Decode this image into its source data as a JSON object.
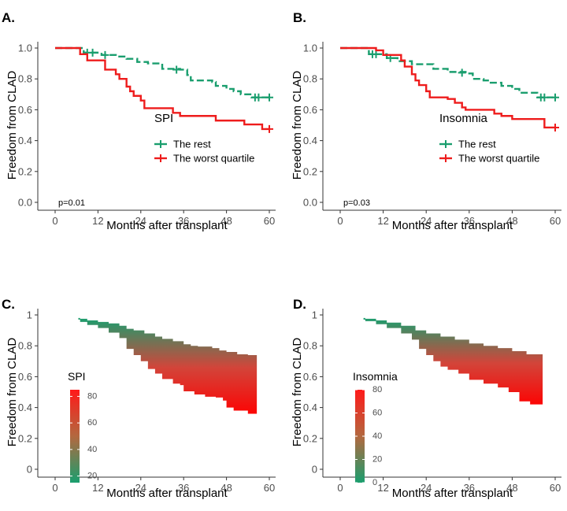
{
  "colors": {
    "rest": "#1a9e6e",
    "worst": "#ee1c1c",
    "axis": "#333333",
    "tick_label": "#4d4d4d"
  },
  "chart_data": [
    {
      "panel": "A.",
      "type": "line",
      "subtype": "kaplan-meier",
      "xlabel": "Months after transplant",
      "ylabel": "Freedom from CLAD",
      "xlim": [
        0,
        60
      ],
      "ylim": [
        0,
        1
      ],
      "xticks": [
        "0",
        "12",
        "24",
        "36",
        "48",
        "60"
      ],
      "yticks": [
        "0.0",
        "0.2",
        "0.4",
        "0.6",
        "0.8",
        "1.0"
      ],
      "legend_title": "SPI",
      "annotation": "p=0.01",
      "series": [
        {
          "name": "The rest",
          "color_key": "rest",
          "dashed": true,
          "steps": [
            [
              0,
              1.0
            ],
            [
              8,
              0.97
            ],
            [
              13,
              0.955
            ],
            [
              17,
              0.945
            ],
            [
              20,
              0.93
            ],
            [
              23,
              0.91
            ],
            [
              26,
              0.9
            ],
            [
              30,
              0.865
            ],
            [
              35,
              0.86
            ],
            [
              37,
              0.825
            ],
            [
              38,
              0.79
            ],
            [
              44,
              0.78
            ],
            [
              45,
              0.755
            ],
            [
              48,
              0.735
            ],
            [
              50,
              0.72
            ],
            [
              52,
              0.7
            ],
            [
              55,
              0.68
            ],
            [
              60,
              0.68
            ]
          ],
          "censor": [
            [
              9,
              0.97
            ],
            [
              10.5,
              0.97
            ],
            [
              14,
              0.955
            ],
            [
              34,
              0.86
            ],
            [
              56,
              0.68
            ],
            [
              57,
              0.68
            ],
            [
              60,
              0.68
            ]
          ]
        },
        {
          "name": "The worst quartile",
          "color_key": "worst",
          "dashed": false,
          "steps": [
            [
              0,
              1.0
            ],
            [
              7,
              0.96
            ],
            [
              9,
              0.92
            ],
            [
              14,
              0.86
            ],
            [
              17,
              0.83
            ],
            [
              18,
              0.8
            ],
            [
              20,
              0.75
            ],
            [
              21,
              0.72
            ],
            [
              22,
              0.69
            ],
            [
              24,
              0.66
            ],
            [
              25,
              0.61
            ],
            [
              30,
              0.61
            ],
            [
              33,
              0.58
            ],
            [
              35,
              0.56
            ],
            [
              45,
              0.53
            ],
            [
              50,
              0.53
            ],
            [
              53,
              0.505
            ],
            [
              58,
              0.475
            ],
            [
              60,
              0.475
            ]
          ],
          "censor": [
            [
              60,
              0.475
            ]
          ]
        }
      ]
    },
    {
      "panel": "B.",
      "type": "line",
      "subtype": "kaplan-meier",
      "xlabel": "Months after transplant",
      "ylabel": "Freedom from CLAD",
      "xlim": [
        0,
        60
      ],
      "ylim": [
        0,
        1
      ],
      "xticks": [
        "0",
        "12",
        "24",
        "36",
        "48",
        "60"
      ],
      "yticks": [
        "0.0",
        "0.2",
        "0.4",
        "0.6",
        "0.8",
        "1.0"
      ],
      "legend_title": "Insomnia",
      "annotation": "p=0.03",
      "series": [
        {
          "name": "The rest",
          "color_key": "rest",
          "dashed": true,
          "steps": [
            [
              0,
              1.0
            ],
            [
              8,
              0.96
            ],
            [
              13,
              0.935
            ],
            [
              16,
              0.915
            ],
            [
              20,
              0.895
            ],
            [
              26,
              0.865
            ],
            [
              30,
              0.845
            ],
            [
              35,
              0.835
            ],
            [
              37,
              0.8
            ],
            [
              40,
              0.79
            ],
            [
              42,
              0.775
            ],
            [
              45,
              0.755
            ],
            [
              48,
              0.735
            ],
            [
              50,
              0.71
            ],
            [
              55,
              0.68
            ],
            [
              60,
              0.68
            ]
          ],
          "censor": [
            [
              9,
              0.96
            ],
            [
              10,
              0.96
            ],
            [
              14,
              0.935
            ],
            [
              34,
              0.84
            ],
            [
              56,
              0.68
            ],
            [
              57,
              0.68
            ],
            [
              60,
              0.68
            ]
          ]
        },
        {
          "name": "The worst quartile",
          "color_key": "worst",
          "dashed": false,
          "steps": [
            [
              0,
              1.0
            ],
            [
              10,
              0.985
            ],
            [
              12,
              0.955
            ],
            [
              17,
              0.92
            ],
            [
              18,
              0.88
            ],
            [
              20,
              0.83
            ],
            [
              21,
              0.79
            ],
            [
              22,
              0.76
            ],
            [
              24,
              0.72
            ],
            [
              25,
              0.68
            ],
            [
              30,
              0.67
            ],
            [
              32,
              0.645
            ],
            [
              34,
              0.615
            ],
            [
              35,
              0.6
            ],
            [
              40,
              0.6
            ],
            [
              43,
              0.575
            ],
            [
              45,
              0.56
            ],
            [
              48,
              0.54
            ],
            [
              55,
              0.54
            ],
            [
              57,
              0.485
            ],
            [
              60,
              0.485
            ]
          ],
          "censor": [
            [
              60,
              0.485
            ]
          ]
        }
      ]
    },
    {
      "panel": "C.",
      "type": "area",
      "subtype": "predicted-survival-gradient",
      "xlabel": "Months after transplant",
      "ylabel": "Freedom from CLAD",
      "xlim": [
        0,
        60
      ],
      "ylim": [
        0,
        1
      ],
      "xticks": [
        "0",
        "12",
        "24",
        "36",
        "48",
        "60"
      ],
      "yticks": [
        "0",
        "0.2",
        "0.4",
        "0.6",
        "0.8",
        "1"
      ],
      "legend_title": "SPI",
      "colorbar_ticks": [
        "20",
        "40",
        "60",
        "80"
      ],
      "colorbar_range": [
        15,
        85
      ],
      "upper": [
        [
          6.5,
          0.98
        ],
        [
          7,
          0.975
        ],
        [
          9,
          0.965
        ],
        [
          12,
          0.955
        ],
        [
          15,
          0.945
        ],
        [
          18,
          0.93
        ],
        [
          20,
          0.91
        ],
        [
          22,
          0.9
        ],
        [
          25,
          0.88
        ],
        [
          28,
          0.86
        ],
        [
          30,
          0.845
        ],
        [
          33,
          0.83
        ],
        [
          36,
          0.81
        ],
        [
          38,
          0.8
        ],
        [
          40,
          0.795
        ],
        [
          44,
          0.785
        ],
        [
          46,
          0.77
        ],
        [
          48,
          0.76
        ],
        [
          51,
          0.745
        ],
        [
          54,
          0.74
        ],
        [
          56.5,
          0.735
        ]
      ],
      "lower": [
        [
          6.5,
          0.97
        ],
        [
          7,
          0.955
        ],
        [
          9,
          0.935
        ],
        [
          12,
          0.915
        ],
        [
          15,
          0.885
        ],
        [
          18,
          0.85
        ],
        [
          20,
          0.78
        ],
        [
          22,
          0.74
        ],
        [
          24,
          0.7
        ],
        [
          26,
          0.65
        ],
        [
          28,
          0.62
        ],
        [
          30,
          0.585
        ],
        [
          33,
          0.555
        ],
        [
          35,
          0.545
        ],
        [
          36,
          0.505
        ],
        [
          39,
          0.485
        ],
        [
          42,
          0.47
        ],
        [
          45,
          0.465
        ],
        [
          47,
          0.445
        ],
        [
          48,
          0.4
        ],
        [
          50,
          0.38
        ],
        [
          54,
          0.36
        ],
        [
          56.5,
          0.34
        ]
      ]
    },
    {
      "panel": "D.",
      "type": "area",
      "subtype": "predicted-survival-gradient",
      "xlabel": "Months after transplant",
      "ylabel": "Freedom from CLAD",
      "xlim": [
        0,
        60
      ],
      "ylim": [
        0,
        1
      ],
      "xticks": [
        "0",
        "12",
        "24",
        "36",
        "48",
        "60"
      ],
      "yticks": [
        "0",
        "0.2",
        "0.4",
        "0.6",
        "0.8",
        "1"
      ],
      "legend_title": "Insomnia",
      "colorbar_ticks": [
        "0",
        "20",
        "40",
        "60",
        "80"
      ],
      "colorbar_range": [
        0,
        80
      ],
      "upper": [
        [
          6.5,
          0.98
        ],
        [
          7,
          0.975
        ],
        [
          10,
          0.965
        ],
        [
          13,
          0.95
        ],
        [
          17,
          0.93
        ],
        [
          21,
          0.9
        ],
        [
          24,
          0.88
        ],
        [
          28,
          0.86
        ],
        [
          32,
          0.84
        ],
        [
          36,
          0.815
        ],
        [
          40,
          0.8
        ],
        [
          44,
          0.785
        ],
        [
          48,
          0.765
        ],
        [
          52,
          0.745
        ],
        [
          56.5,
          0.73
        ]
      ],
      "lower": [
        [
          6.5,
          0.97
        ],
        [
          7,
          0.96
        ],
        [
          10,
          0.94
        ],
        [
          13,
          0.915
        ],
        [
          17,
          0.88
        ],
        [
          20,
          0.84
        ],
        [
          22,
          0.78
        ],
        [
          24,
          0.74
        ],
        [
          26,
          0.7
        ],
        [
          28,
          0.665
        ],
        [
          30,
          0.645
        ],
        [
          33,
          0.62
        ],
        [
          36,
          0.58
        ],
        [
          40,
          0.555
        ],
        [
          44,
          0.53
        ],
        [
          47,
          0.5
        ],
        [
          50,
          0.44
        ],
        [
          53,
          0.42
        ],
        [
          56.5,
          0.4
        ]
      ]
    }
  ]
}
